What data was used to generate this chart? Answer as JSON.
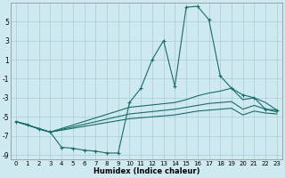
{
  "xlabel": "Humidex (Indice chaleur)",
  "background_color": "#ceeaf0",
  "grid_color": "#aaccd4",
  "line_color": "#1a6b6b",
  "xlim": [
    -0.5,
    23.5
  ],
  "ylim": [
    -9.5,
    7.0
  ],
  "yticks": [
    -9,
    -7,
    -5,
    -3,
    -1,
    1,
    3,
    5
  ],
  "xticks": [
    0,
    1,
    2,
    3,
    4,
    5,
    6,
    7,
    8,
    9,
    10,
    11,
    12,
    13,
    14,
    15,
    16,
    17,
    18,
    19,
    20,
    21,
    22,
    23
  ],
  "line1_x": [
    0,
    1,
    2,
    3,
    4,
    5,
    6,
    7,
    8,
    9,
    10,
    11,
    12,
    13,
    14,
    15,
    16,
    17,
    18,
    19,
    20,
    21,
    22,
    23
  ],
  "line1_y": [
    -5.5,
    -5.8,
    -6.3,
    -6.6,
    -8.2,
    -8.3,
    -8.5,
    -8.6,
    -8.8,
    -8.8,
    -3.5,
    -2.0,
    1.0,
    3.0,
    -1.8,
    6.5,
    6.6,
    5.2,
    -0.7,
    -2.0,
    -2.7,
    -3.0,
    -4.2,
    -4.3
  ],
  "line2_x": [
    0,
    3,
    10,
    14,
    15,
    16,
    17,
    18,
    19,
    20,
    21,
    22,
    23
  ],
  "line2_y": [
    -5.5,
    -6.6,
    -4.0,
    -3.5,
    -3.2,
    -2.8,
    -2.5,
    -2.3,
    -2.0,
    -3.2,
    -3.0,
    -3.5,
    -4.3
  ],
  "line3_x": [
    0,
    3,
    10,
    14,
    15,
    16,
    17,
    18,
    19,
    20,
    21,
    22,
    23
  ],
  "line3_y": [
    -5.5,
    -6.6,
    -4.7,
    -4.2,
    -4.0,
    -3.8,
    -3.6,
    -3.5,
    -3.4,
    -4.2,
    -3.8,
    -4.2,
    -4.5
  ],
  "line4_x": [
    0,
    3,
    10,
    14,
    15,
    16,
    17,
    18,
    19,
    20,
    21,
    22,
    23
  ],
  "line4_y": [
    -5.5,
    -6.6,
    -5.2,
    -4.8,
    -4.6,
    -4.4,
    -4.3,
    -4.2,
    -4.1,
    -4.8,
    -4.4,
    -4.6,
    -4.7
  ]
}
